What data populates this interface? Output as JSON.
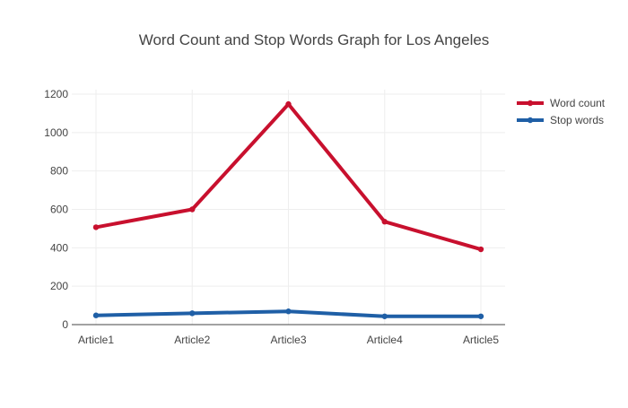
{
  "chart_data": {
    "type": "line",
    "title": "Word Count and Stop Words Graph for Los Angeles",
    "categories": [
      "Article1",
      "Article2",
      "Article3",
      "Article4",
      "Article5"
    ],
    "series": [
      {
        "name": "Word count",
        "color": "#c8102e",
        "values": [
          507,
          600,
          1148,
          536,
          392
        ]
      },
      {
        "name": "Stop words",
        "color": "#1f5fa6",
        "values": [
          48,
          59,
          69,
          43,
          43
        ]
      }
    ],
    "ylim": [
      0,
      1200
    ],
    "yticks": [
      0,
      200,
      400,
      600,
      800,
      1000,
      1200
    ],
    "grid": true,
    "legend_position": "top-right"
  }
}
